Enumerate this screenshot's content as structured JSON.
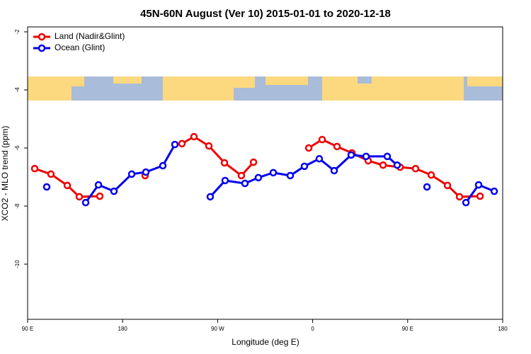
{
  "chart_data": {
    "type": "line",
    "title": "45N-60N August (Ver 10)   2015-01-01 to 2020-12-18",
    "x_label": "Longitude (deg E)",
    "y_label": "XCO2 - MLO trend (ppm)",
    "xlim": [
      90,
      540
    ],
    "ylim": [
      -11.9,
      -1.83
    ],
    "xticks": [
      {
        "value": 90,
        "label": "90 E"
      },
      180,
      {
        "value": 270,
        "label": "90 W"
      },
      {
        "value": 360,
        "label": "0"
      },
      {
        "value": 450,
        "label": "90 E"
      },
      {
        "value": 540,
        "label": "180"
      }
    ],
    "yticks": [
      -2,
      -4,
      -6,
      -8,
      -10
    ],
    "legend": "top-left",
    "series": [
      {
        "name": "Land (Nadir&Glint)",
        "color": "#ee0000",
        "x": [
          96.7,
          112.1,
          127.6,
          139.0,
          158.4,
          null,
          201.3,
          null,
          236.2,
          247.6,
          261.7,
          276.5,
          292.5,
          304.0,
          null,
          356.3,
          369.0,
          383.1,
          397.2,
          412.6,
          426.7,
          442.8,
          457.5,
          472.3,
          487.7,
          499.1,
          518.6
        ],
        "values": [
          -6.71,
          -6.9,
          -7.29,
          -7.68,
          -7.66,
          null,
          -6.95,
          null,
          -5.85,
          -5.61,
          -5.93,
          -6.51,
          -6.95,
          -6.49,
          null,
          -6.0,
          -5.71,
          -5.95,
          -6.17,
          -6.44,
          -6.59,
          -6.66,
          -6.71,
          -6.93,
          -7.29,
          -7.68,
          -7.66
        ]
      },
      {
        "name": "Ocean (Glint)",
        "color": "#0000ee",
        "x": [
          108.1,
          null,
          145.0,
          157.1,
          171.8,
          188.6,
          202.0,
          218.1,
          229.5,
          null,
          263.0,
          277.1,
          295.9,
          308.6,
          322.7,
          338.8,
          352.2,
          366.3,
          380.4,
          396.5,
          410.6,
          430.7,
          440.1,
          null,
          468.3,
          null,
          505.2,
          517.2,
          532.0
        ],
        "values": [
          -7.34,
          null,
          -7.88,
          -7.27,
          -7.49,
          -6.9,
          -6.83,
          -6.61,
          -5.88,
          null,
          -7.68,
          -7.12,
          -7.22,
          -7.02,
          -6.85,
          -6.95,
          -6.63,
          -6.37,
          -6.78,
          -6.24,
          -6.29,
          -6.29,
          -6.59,
          null,
          -7.34,
          null,
          -7.88,
          -7.27,
          -7.49
        ]
      }
    ]
  }
}
